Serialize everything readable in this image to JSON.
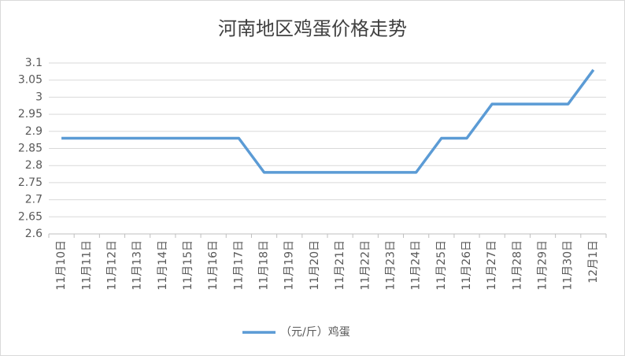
{
  "chart_data": {
    "type": "line",
    "title": "河南地区鸡蛋价格走势",
    "categories": [
      "11月10日",
      "11月11日",
      "11月12日",
      "11月13日",
      "11月14日",
      "11月15日",
      "11月16日",
      "11月17日",
      "11月18日",
      "11月19日",
      "11月20日",
      "11月21日",
      "11月22日",
      "11月23日",
      "11月24日",
      "11月25日",
      "11月26日",
      "11月27日",
      "11月28日",
      "11月29日",
      "11月30日",
      "12月1日"
    ],
    "series": [
      {
        "name": "（元/斤）鸡蛋",
        "color": "#5b9bd5",
        "values": [
          2.88,
          2.88,
          2.88,
          2.88,
          2.88,
          2.88,
          2.88,
          2.88,
          2.78,
          2.78,
          2.78,
          2.78,
          2.78,
          2.78,
          2.78,
          2.88,
          2.88,
          2.98,
          2.98,
          2.98,
          2.98,
          3.08
        ]
      }
    ],
    "ylim": [
      2.6,
      3.1
    ],
    "yticks": [
      2.6,
      2.65,
      2.7,
      2.75,
      2.8,
      2.85,
      2.9,
      2.95,
      3,
      3.05,
      3.1
    ],
    "grid": true,
    "legend": "bottom"
  }
}
